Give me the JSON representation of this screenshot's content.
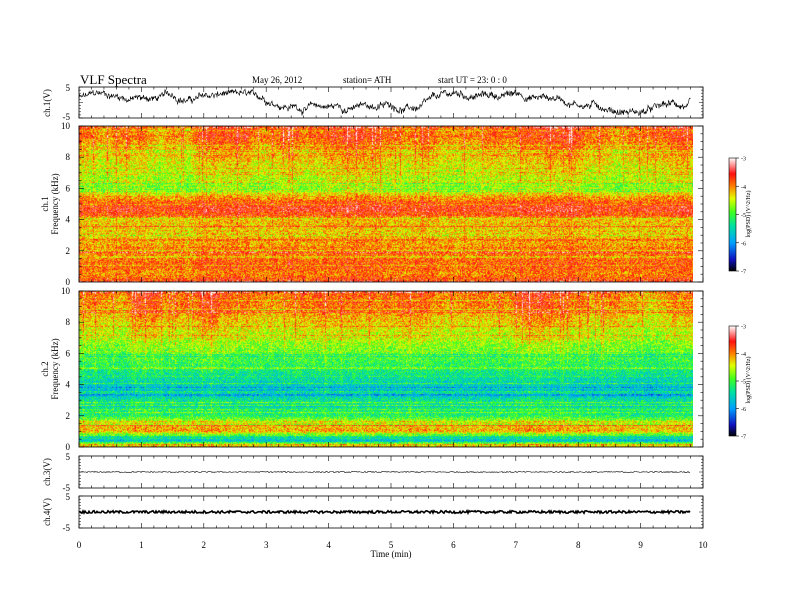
{
  "header": {
    "title": "VLF  Spectra",
    "date": "May 26, 2012",
    "station": "station= ATH",
    "start_ut": "start  UT =   23: 0  : 0"
  },
  "chart_data": [
    {
      "id": "ch1-waveform",
      "type": "line",
      "ylabel": "ch.1(V)",
      "ylim": [
        -5,
        5
      ],
      "yticks": [
        "5",
        "-5"
      ],
      "x_range_min": [
        0,
        10
      ],
      "data_extent_min": 9.8,
      "description_of_trace": "noisy waveform wandering between about -4 and +4 V"
    },
    {
      "id": "ch1-spectrogram",
      "type": "heatmap",
      "ylabel": "Frequency (kHz)",
      "ylabel2": "ch.1",
      "ylim": [
        0,
        10
      ],
      "yticks": [
        "0",
        "2",
        "4",
        "6",
        "8",
        "10"
      ],
      "x_range_min": [
        0,
        10
      ],
      "colorbar": {
        "label": "log(PSD) (V^2/Hz)",
        "range": [
          -7,
          -3
        ],
        "ticks": [
          "-3",
          "-4",
          "-5",
          "-6",
          "-7"
        ]
      },
      "profile_freq_khz": [
        0,
        0.5,
        1,
        2,
        3,
        4,
        4.5,
        5,
        5.5,
        6,
        7,
        8,
        9,
        10
      ],
      "profile_logpsd": [
        -3.7,
        -4.0,
        -3.8,
        -4.0,
        -4.2,
        -4.2,
        -3.6,
        -3.7,
        -4.2,
        -4.6,
        -4.5,
        -4.2,
        -3.9,
        -3.8
      ]
    },
    {
      "id": "ch2-spectrogram",
      "type": "heatmap",
      "ylabel": "Frequency (kHz)",
      "ylabel2": "ch.2",
      "ylim": [
        0,
        10
      ],
      "yticks": [
        "0",
        "2",
        "4",
        "6",
        "8",
        "10"
      ],
      "x_range_min": [
        0,
        10
      ],
      "colorbar": {
        "label": "log(PSD) (V^2/Hz)",
        "range": [
          -7,
          -3
        ],
        "ticks": [
          "-3",
          "-4",
          "-5",
          "-6",
          "-7"
        ]
      },
      "profile_freq_khz": [
        0,
        0.5,
        1,
        1.5,
        2,
        3,
        3.5,
        4,
        5,
        6,
        7,
        8,
        9,
        10
      ],
      "profile_logpsd": [
        -4.2,
        -5.8,
        -4.1,
        -4.4,
        -5.2,
        -5.4,
        -5.8,
        -5.6,
        -5.2,
        -4.9,
        -4.6,
        -4.3,
        -4.0,
        -3.9
      ]
    },
    {
      "id": "ch3-waveform",
      "type": "line",
      "ylabel": "ch.3(V)",
      "ylim": [
        -5,
        5
      ],
      "yticks": [
        "5",
        "-5"
      ],
      "x_range_min": [
        0,
        10
      ],
      "level_v": 0
    },
    {
      "id": "ch4-waveform",
      "type": "line",
      "ylabel": "ch.4(V)",
      "ylim": [
        -5,
        5
      ],
      "yticks": [
        "5",
        "-5"
      ],
      "x_range_min": [
        0,
        10
      ],
      "level_v": 0,
      "xlabel": "Time  (min)",
      "xticks": [
        "0",
        "1",
        "2",
        "3",
        "4",
        "5",
        "6",
        "7",
        "8",
        "9",
        "10"
      ]
    }
  ]
}
